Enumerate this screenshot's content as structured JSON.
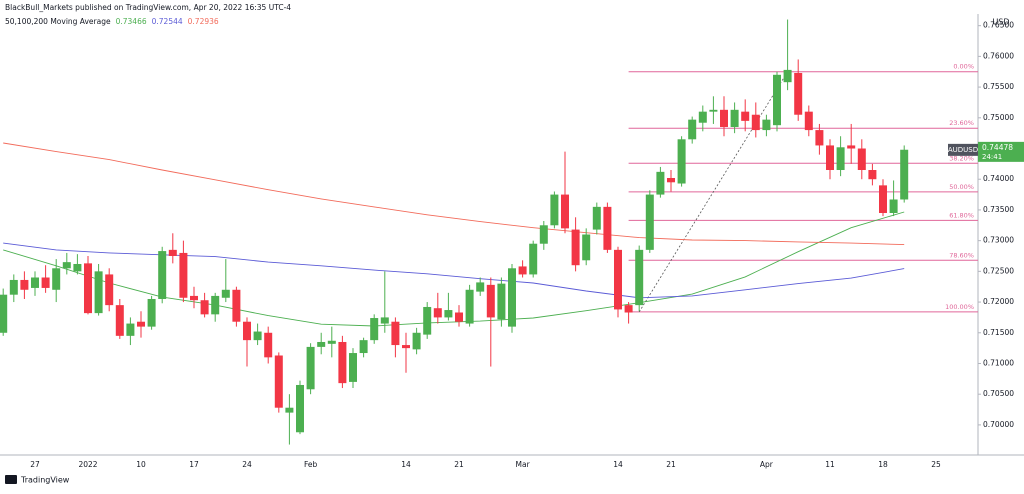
{
  "header": {
    "publisher": "BlackBull_Markets published on TradingView.com, Apr 20, 2022 16:35 UTC-4"
  },
  "footer": {
    "brand": "TradingView"
  },
  "chart_data": {
    "type": "candlestick",
    "symbol": "AUDUSD",
    "currency": "USD",
    "current_price": 0.74478,
    "countdown": "24:41",
    "up_color": "#4caf50",
    "down_color": "#f23645",
    "grid": false,
    "categories": [
      null,
      null,
      null,
      "27",
      null,
      null,
      null,
      null,
      "2022",
      null,
      null,
      null,
      null,
      "10",
      null,
      null,
      null,
      null,
      "17",
      null,
      null,
      null,
      null,
      "24",
      null,
      null,
      null,
      null,
      null,
      "Feb",
      null,
      null,
      null,
      null,
      null,
      null,
      null,
      null,
      "14",
      null,
      null,
      null,
      null,
      "21",
      null,
      null,
      null,
      null,
      null,
      "Mar",
      null,
      null,
      null,
      null,
      null,
      null,
      null,
      null,
      "14",
      null,
      null,
      null,
      null,
      "21",
      null,
      null,
      null,
      null,
      null,
      null,
      null,
      null,
      "Apr",
      null,
      null,
      null,
      null,
      null,
      "11",
      null,
      null,
      null,
      null,
      "18",
      null,
      null
    ],
    "axis_extra_labels": [
      "25"
    ],
    "open": [
      0.715,
      0.7212,
      0.7236,
      0.7223,
      0.724,
      0.722,
      0.7255,
      0.725,
      0.7263,
      0.7182,
      0.7245,
      0.7195,
      0.7145,
      0.7168,
      0.716,
      0.7205,
      0.7285,
      0.728,
      0.721,
      0.7203,
      0.718,
      0.7207,
      0.722,
      0.7168,
      0.7138,
      0.715,
      0.7113,
      0.702,
      0.6988,
      0.7058,
      0.7127,
      0.7132,
      0.7135,
      0.707,
      0.7117,
      0.7138,
      0.7165,
      0.7168,
      0.713,
      0.7123,
      0.7147,
      0.719,
      0.7175,
      0.7183,
      0.7165,
      0.7217,
      0.7228,
      0.7172,
      0.716,
      0.7258,
      0.7245,
      0.7295,
      0.7325,
      0.7375,
      0.7318,
      0.7268,
      0.7318,
      0.7355,
      0.7285,
      0.7195,
      0.7195,
      0.7285,
      0.7375,
      0.7402,
      0.7393,
      0.7465,
      0.7492,
      0.751,
      0.7513,
      0.7485,
      0.751,
      0.7505,
      0.748,
      0.7488,
      0.7558,
      0.7573,
      0.751,
      0.748,
      0.7455,
      0.7415,
      0.7455,
      0.745,
      0.7415,
      0.739,
      0.7345,
      0.7367
    ],
    "high": [
      0.7222,
      0.7245,
      0.725,
      0.725,
      0.726,
      0.727,
      0.728,
      0.7278,
      0.7275,
      0.7262,
      0.7255,
      0.7205,
      0.7175,
      0.7185,
      0.721,
      0.729,
      0.7312,
      0.73,
      0.7225,
      0.7215,
      0.7215,
      0.727,
      0.7225,
      0.7175,
      0.7165,
      0.716,
      0.7118,
      0.705,
      0.7072,
      0.7133,
      0.715,
      0.716,
      0.7145,
      0.7125,
      0.7142,
      0.718,
      0.725,
      0.7175,
      0.715,
      0.7158,
      0.72,
      0.7215,
      0.7215,
      0.7195,
      0.7228,
      0.724,
      0.724,
      0.724,
      0.7262,
      0.7268,
      0.73,
      0.7332,
      0.738,
      0.7445,
      0.7338,
      0.732,
      0.7362,
      0.7362,
      0.729,
      0.72,
      0.7292,
      0.7382,
      0.742,
      0.7415,
      0.747,
      0.7502,
      0.752,
      0.7535,
      0.7535,
      0.7525,
      0.753,
      0.7525,
      0.7505,
      0.7575,
      0.766,
      0.7595,
      0.752,
      0.749,
      0.7465,
      0.747,
      0.749,
      0.7465,
      0.7425,
      0.74,
      0.7398,
      0.7455
    ],
    "low": [
      0.7145,
      0.72,
      0.7205,
      0.721,
      0.7215,
      0.72,
      0.7245,
      0.7245,
      0.718,
      0.7178,
      0.7185,
      0.714,
      0.713,
      0.7142,
      0.7155,
      0.7198,
      0.7263,
      0.72,
      0.719,
      0.7175,
      0.7168,
      0.72,
      0.716,
      0.7095,
      0.713,
      0.71,
      0.702,
      0.6968,
      0.6985,
      0.705,
      0.7115,
      0.711,
      0.706,
      0.706,
      0.711,
      0.7132,
      0.715,
      0.711,
      0.7085,
      0.7115,
      0.714,
      0.7165,
      0.717,
      0.716,
      0.716,
      0.721,
      0.7095,
      0.716,
      0.715,
      0.724,
      0.724,
      0.7285,
      0.732,
      0.7312,
      0.725,
      0.726,
      0.731,
      0.728,
      0.7175,
      0.7165,
      0.7185,
      0.728,
      0.737,
      0.738,
      0.7388,
      0.7458,
      0.7478,
      0.749,
      0.747,
      0.7475,
      0.7478,
      0.7468,
      0.747,
      0.7478,
      0.7545,
      0.7495,
      0.747,
      0.744,
      0.74,
      0.7405,
      0.7425,
      0.74,
      0.739,
      0.734,
      0.734,
      0.7362
    ],
    "close": [
      0.7212,
      0.7236,
      0.722,
      0.724,
      0.7223,
      0.7255,
      0.7265,
      0.7262,
      0.7182,
      0.725,
      0.7195,
      0.7145,
      0.7165,
      0.716,
      0.7205,
      0.7283,
      0.7275,
      0.7207,
      0.7203,
      0.718,
      0.721,
      0.722,
      0.7168,
      0.7138,
      0.7152,
      0.711,
      0.7028,
      0.7028,
      0.7065,
      0.7127,
      0.7135,
      0.7137,
      0.7068,
      0.7117,
      0.7138,
      0.7174,
      0.7175,
      0.713,
      0.7125,
      0.715,
      0.7192,
      0.7175,
      0.7187,
      0.7168,
      0.722,
      0.7232,
      0.7175,
      0.723,
      0.7255,
      0.7245,
      0.7295,
      0.7325,
      0.7375,
      0.732,
      0.726,
      0.731,
      0.7355,
      0.7285,
      0.7188,
      0.7183,
      0.7285,
      0.7375,
      0.7412,
      0.7395,
      0.7465,
      0.7497,
      0.751,
      0.7513,
      0.7485,
      0.7513,
      0.7495,
      0.748,
      0.7497,
      0.757,
      0.7578,
      0.7505,
      0.748,
      0.7455,
      0.7415,
      0.7452,
      0.745,
      0.7415,
      0.74,
      0.7345,
      0.7367,
      0.7448
    ],
    "ylim": [
      0.6951,
      0.7669
    ],
    "yticks": [
      {
        "value": 0.7,
        "label": "0.70000"
      },
      {
        "value": 0.705,
        "label": "0.70500"
      },
      {
        "value": 0.71,
        "label": "0.71000"
      },
      {
        "value": 0.715,
        "label": "0.71500"
      },
      {
        "value": 0.72,
        "label": "0.72000"
      },
      {
        "value": 0.725,
        "label": "0.72500"
      },
      {
        "value": 0.73,
        "label": "0.73000"
      },
      {
        "value": 0.735,
        "label": "0.73500"
      },
      {
        "value": 0.74,
        "label": "0.74000"
      },
      {
        "value": 0.745,
        "label": "0.74500"
      },
      {
        "value": 0.75,
        "label": "0.75000"
      },
      {
        "value": 0.755,
        "label": "0.75500"
      },
      {
        "value": 0.76,
        "label": "0.76000"
      },
      {
        "value": 0.765,
        "label": "0.76500"
      }
    ],
    "moving_averages": {
      "title": "50,100,200 Moving Average",
      "series": [
        {
          "color": "#4caf50",
          "x": [
            0,
            5,
            10,
            15,
            20,
            25,
            30,
            35,
            40,
            45,
            50,
            55,
            60,
            65,
            70,
            75,
            80,
            85
          ],
          "values": [
            0.7285,
            0.7259,
            0.7231,
            0.7208,
            0.7195,
            0.7178,
            0.7164,
            0.7161,
            0.7166,
            0.7169,
            0.7174,
            0.7186,
            0.7199,
            0.7213,
            0.7241,
            0.7282,
            0.7321,
            0.73466
          ]
        },
        {
          "color": "#5b5bd6",
          "x": [
            0,
            5,
            10,
            15,
            20,
            25,
            30,
            35,
            40,
            45,
            50,
            55,
            60,
            65,
            70,
            75,
            80,
            85
          ],
          "values": [
            0.7296,
            0.7285,
            0.728,
            0.7277,
            0.7274,
            0.7265,
            0.7259,
            0.7252,
            0.7246,
            0.7238,
            0.7231,
            0.7218,
            0.7207,
            0.721,
            0.722,
            0.723,
            0.7239,
            0.72544
          ]
        },
        {
          "color": "#f26b5b",
          "x": [
            0,
            5,
            10,
            15,
            20,
            25,
            30,
            35,
            40,
            45,
            50,
            55,
            60,
            65,
            70,
            75,
            80,
            85
          ],
          "values": [
            0.7459,
            0.7445,
            0.7432,
            0.7415,
            0.7399,
            0.7383,
            0.7368,
            0.7355,
            0.7342,
            0.7331,
            0.7321,
            0.7313,
            0.7305,
            0.7301,
            0.73,
            0.7298,
            0.7296,
            0.72936
          ]
        }
      ]
    },
    "fibonacci": {
      "color": "#e0679a",
      "levels": [
        {
          "label": "0.00%",
          "price": 0.7575
        },
        {
          "label": "23.60%",
          "price": 0.7483
        },
        {
          "label": "38.20%",
          "price": 0.7426
        },
        {
          "label": "50.00%",
          "price": 0.73795
        },
        {
          "label": "61.80%",
          "price": 0.7333
        },
        {
          "label": "78.60%",
          "price": 0.7268
        },
        {
          "label": "100.00%",
          "price": 0.7184
        }
      ]
    }
  }
}
